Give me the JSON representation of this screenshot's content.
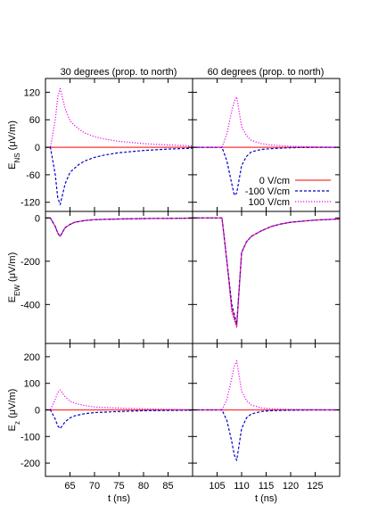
{
  "chart_data": {
    "type": "line",
    "layout": "3 rows x 2 columns, shared y axis per row, shared x axis per column",
    "columns": [
      {
        "title": "30 degrees (prop. to north)",
        "xlabel": "t (ns)",
        "xlim": [
          60,
          90
        ],
        "xticks": [
          65,
          70,
          75,
          80,
          85
        ]
      },
      {
        "title": "60 degrees (prop. to north)",
        "xlabel": "t (ns)",
        "xlim": [
          100,
          130
        ],
        "xticks": [
          105,
          110,
          115,
          120,
          125
        ]
      }
    ],
    "rows": [
      {
        "ylabel": {
          "base": "E",
          "sub": "NS",
          "rest": " (μV/m)"
        },
        "ylim": [
          -140,
          150
        ],
        "yticks": [
          -120,
          -60,
          0,
          60,
          120
        ]
      },
      {
        "ylabel": {
          "base": "E",
          "sub": "EW",
          "rest": " (μV/m)"
        },
        "ylim": [
          -580,
          30
        ],
        "yticks": [
          -400,
          -200,
          0
        ]
      },
      {
        "ylabel": {
          "base": "E",
          "sub": "z",
          "rest": " (μV/m)"
        },
        "ylim": [
          -250,
          250
        ],
        "yticks": [
          -200,
          -100,
          0,
          100,
          200
        ]
      }
    ],
    "legend": {
      "placement": "top-right",
      "panel": [
        0,
        1
      ]
    },
    "series_style": [
      {
        "name": "0 V/cm",
        "color": "#ff3030",
        "dash": "solid"
      },
      {
        "name": "-100 V/cm",
        "color": "#0000cc",
        "dash": "dashed"
      },
      {
        "name": "100 V/cm",
        "color": "#ee00ee",
        "dash": "dotted"
      }
    ],
    "panels": [
      {
        "row": 0,
        "col": 0,
        "series": [
          {
            "name": "0 V/cm",
            "x": [
              60,
              90
            ],
            "y": [
              0,
              0
            ]
          },
          {
            "name": "-100 V/cm",
            "x": [
              60,
              61,
              62,
              62.5,
              63,
              64,
              65,
              66,
              67,
              68,
              70,
              72,
              75,
              80,
              85,
              90
            ],
            "y": [
              0,
              0,
              -60,
              -110,
              -125,
              -80,
              -55,
              -45,
              -36,
              -30,
              -22,
              -17,
              -12,
              -7,
              -4,
              -2
            ]
          },
          {
            "name": "100 V/cm",
            "x": [
              60,
              61,
              62,
              62.5,
              63,
              64,
              65,
              66,
              67,
              68,
              70,
              72,
              75,
              80,
              85,
              90
            ],
            "y": [
              0,
              0,
              60,
              110,
              128,
              85,
              58,
              47,
              38,
              31,
              23,
              18,
              13,
              8,
              5,
              3
            ]
          }
        ]
      },
      {
        "row": 0,
        "col": 1,
        "series": [
          {
            "name": "0 V/cm",
            "x": [
              100,
              130
            ],
            "y": [
              0,
              0
            ]
          },
          {
            "name": "-100 V/cm",
            "x": [
              100,
              106,
              107,
              108,
              108.5,
              109,
              110,
              111,
              112,
              114,
              116,
              120,
              125,
              130
            ],
            "y": [
              0,
              0,
              -30,
              -80,
              -105,
              -100,
              -40,
              -20,
              -10,
              -5,
              -3,
              -1,
              0,
              0
            ]
          },
          {
            "name": "100 V/cm",
            "x": [
              100,
              106,
              107,
              108,
              108.5,
              109,
              110,
              111,
              112,
              114,
              116,
              120,
              125,
              130
            ],
            "y": [
              0,
              0,
              30,
              80,
              100,
              110,
              45,
              25,
              15,
              8,
              5,
              2,
              1,
              0
            ]
          }
        ]
      },
      {
        "row": 1,
        "col": 0,
        "series": [
          {
            "name": "0 V/cm",
            "x": [
              60,
              61,
              62,
              62.5,
              63,
              63.5,
              64,
              65,
              66,
              68,
              70,
              75,
              80,
              85,
              90
            ],
            "y": [
              0,
              0,
              -40,
              -70,
              -85,
              -65,
              -45,
              -30,
              -20,
              -12,
              -8,
              -5,
              -3,
              -2,
              -1
            ]
          },
          {
            "name": "-100 V/cm",
            "x": [
              60,
              61,
              62,
              62.5,
              63,
              63.5,
              64,
              65,
              66,
              68,
              70,
              75,
              80,
              85,
              90
            ],
            "y": [
              0,
              0,
              -40,
              -70,
              -85,
              -65,
              -45,
              -30,
              -20,
              -12,
              -8,
              -5,
              -3,
              -2,
              -1
            ]
          },
          {
            "name": "100 V/cm",
            "x": [
              60,
              61,
              62,
              62.5,
              63,
              63.5,
              64,
              65,
              66,
              68,
              70,
              75,
              80,
              85,
              90
            ],
            "y": [
              0,
              0,
              -40,
              -70,
              -85,
              -65,
              -45,
              -30,
              -20,
              -12,
              -8,
              -5,
              -3,
              -2,
              -1
            ]
          }
        ]
      },
      {
        "row": 1,
        "col": 1,
        "series": [
          {
            "name": "0 V/cm",
            "x": [
              100,
              106,
              107,
              108,
              109,
              110,
              111,
              112,
              114,
              116,
              118,
              120,
              125,
              130
            ],
            "y": [
              0,
              0,
              -200,
              -420,
              -500,
              -160,
              -110,
              -85,
              -60,
              -40,
              -28,
              -20,
              -10,
              -5
            ]
          },
          {
            "name": "-100 V/cm",
            "x": [
              100,
              106,
              107,
              108,
              109,
              110,
              111,
              112,
              114,
              116,
              118,
              120,
              125,
              130
            ],
            "y": [
              0,
              0,
              -200,
              -400,
              -490,
              -160,
              -110,
              -85,
              -60,
              -40,
              -28,
              -20,
              -10,
              -5
            ]
          },
          {
            "name": "100 V/cm",
            "x": [
              100,
              106,
              107,
              108,
              109,
              110,
              111,
              112,
              114,
              116,
              118,
              120,
              125,
              130
            ],
            "y": [
              0,
              0,
              -200,
              -440,
              -505,
              -160,
              -110,
              -85,
              -60,
              -40,
              -28,
              -20,
              -10,
              -5
            ]
          }
        ]
      },
      {
        "row": 2,
        "col": 0,
        "series": [
          {
            "name": "0 V/cm",
            "x": [
              60,
              90
            ],
            "y": [
              0,
              0
            ]
          },
          {
            "name": "-100 V/cm",
            "x": [
              60,
              61,
              62,
              62.5,
              63,
              64,
              65,
              66,
              68,
              70,
              75,
              80,
              85,
              90
            ],
            "y": [
              0,
              0,
              -35,
              -60,
              -70,
              -45,
              -30,
              -22,
              -14,
              -10,
              -6,
              -3,
              -2,
              -1
            ]
          },
          {
            "name": "100 V/cm",
            "x": [
              60,
              61,
              62,
              62.5,
              63,
              64,
              65,
              66,
              68,
              70,
              75,
              80,
              85,
              90
            ],
            "y": [
              0,
              0,
              40,
              65,
              75,
              50,
              33,
              25,
              16,
              11,
              7,
              4,
              2,
              1
            ]
          }
        ]
      },
      {
        "row": 2,
        "col": 1,
        "series": [
          {
            "name": "0 V/cm",
            "x": [
              100,
              130
            ],
            "y": [
              0,
              0
            ]
          },
          {
            "name": "-100 V/cm",
            "x": [
              100,
              106,
              107,
              108,
              108.5,
              109,
              110,
              111,
              112,
              114,
              116,
              120,
              125,
              130
            ],
            "y": [
              0,
              0,
              -40,
              -120,
              -170,
              -190,
              -70,
              -30,
              -15,
              -6,
              -3,
              -1,
              0,
              0
            ]
          },
          {
            "name": "100 V/cm",
            "x": [
              100,
              106,
              107,
              108,
              108.5,
              109,
              110,
              111,
              112,
              114,
              116,
              120,
              125,
              130
            ],
            "y": [
              0,
              0,
              40,
              120,
              165,
              185,
              70,
              35,
              18,
              8,
              4,
              2,
              1,
              0
            ]
          }
        ]
      }
    ]
  }
}
